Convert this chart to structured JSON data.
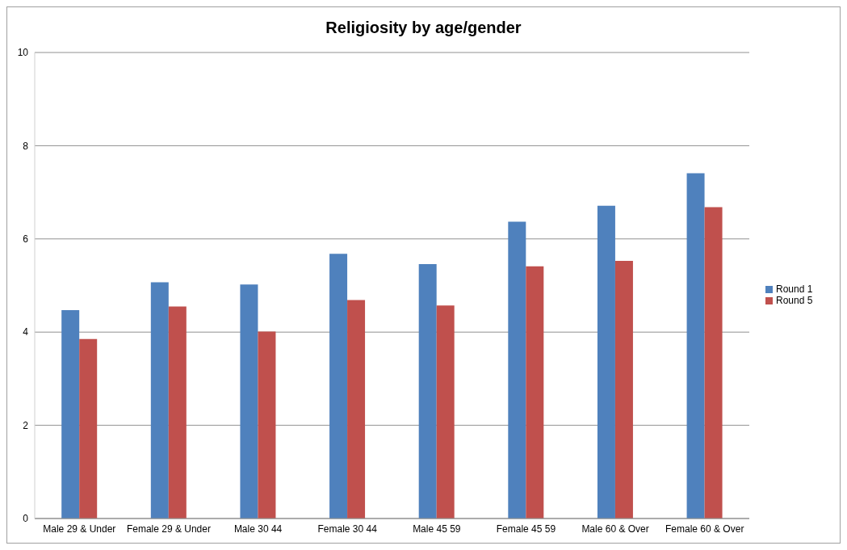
{
  "chart_data": {
    "type": "bar",
    "title": "Religiosity by age/gender",
    "categories": [
      "Male 29 & Under",
      "Female 29 & Under",
      "Male 30 44",
      "Female 30 44",
      "Male 45 59",
      "Female 45 59",
      "Male 60 & Over",
      "Female 60 & Over"
    ],
    "series": [
      {
        "name": "Round 1",
        "color": "#4f81bd",
        "values": [
          4.47,
          5.07,
          5.02,
          5.68,
          5.46,
          6.37,
          6.71,
          7.41
        ]
      },
      {
        "name": "Round 5",
        "color": "#c0504d",
        "values": [
          3.85,
          4.55,
          4.01,
          4.69,
          4.57,
          5.41,
          5.53,
          6.68
        ]
      }
    ],
    "ylim": [
      0,
      10
    ],
    "yticks": [
      0,
      2,
      4,
      6,
      8,
      10
    ],
    "grid": "y",
    "legend": "right"
  }
}
